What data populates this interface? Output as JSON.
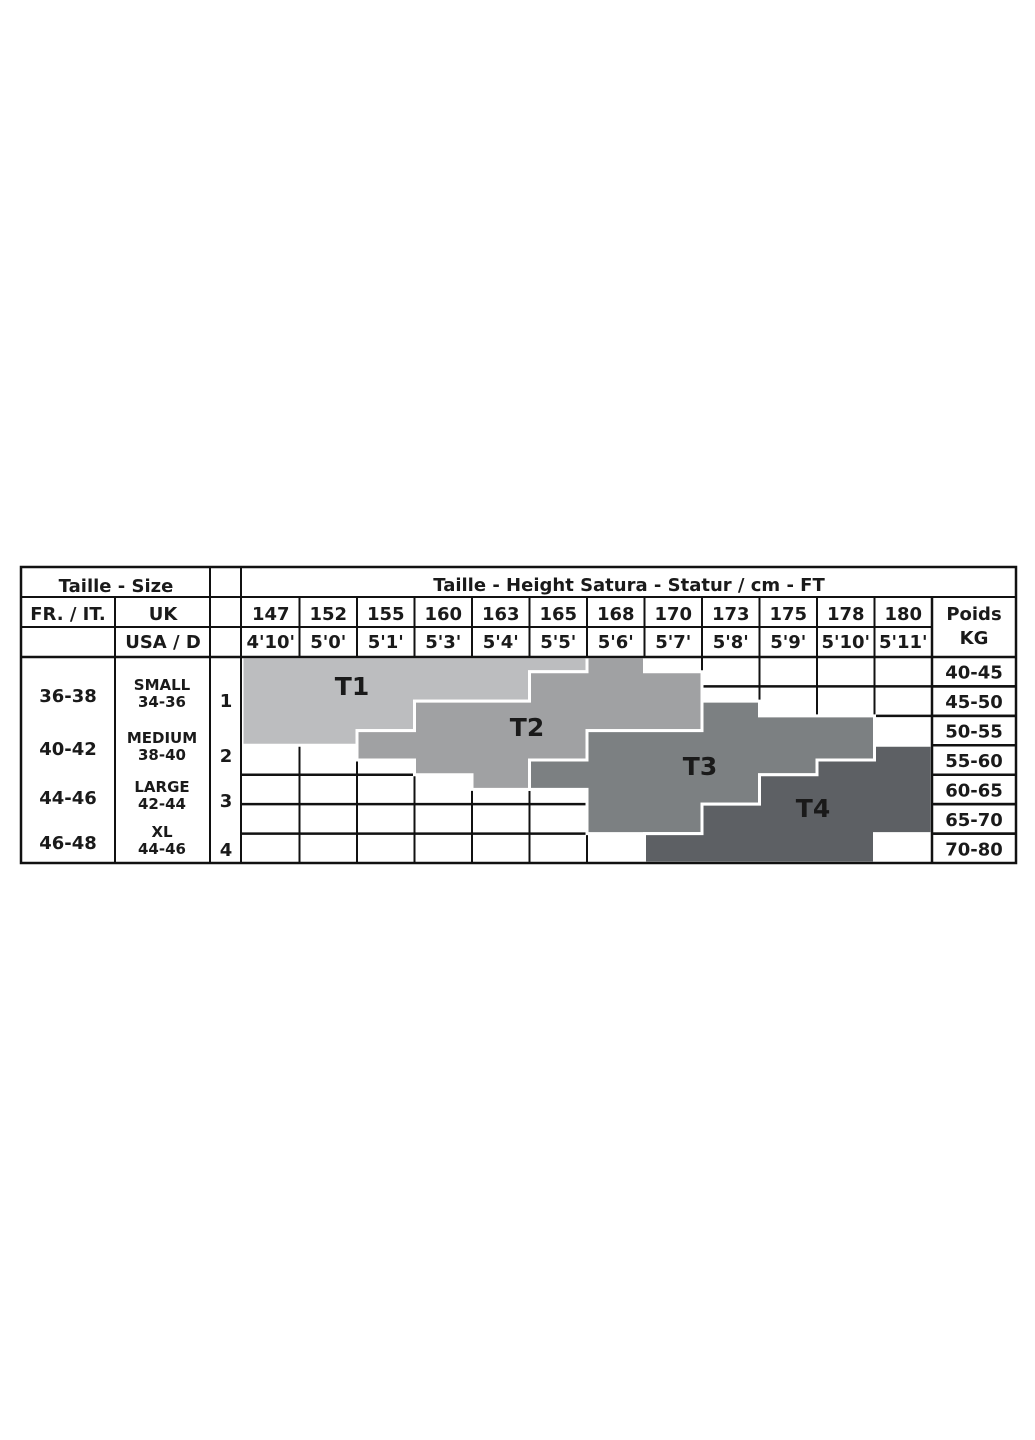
{
  "chart_data": {
    "type": "table",
    "header": {
      "size_title": "Taille - Size",
      "height_title": "Taille - Height Satura - Statur / cm - FT",
      "fr_it": "FR. / IT.",
      "uk": "UK",
      "usa_d": "USA / D",
      "weight_title": "Poids",
      "weight_unit": "KG"
    },
    "heights_cm": [
      "147",
      "152",
      "155",
      "160",
      "163",
      "165",
      "168",
      "170",
      "173",
      "175",
      "178",
      "180"
    ],
    "heights_ft": [
      "4'10'",
      "5'0'",
      "5'1'",
      "5'3'",
      "5'4'",
      "5'5'",
      "5'6'",
      "5'7'",
      "5'8'",
      "5'9'",
      "5'10'",
      "5'11'"
    ],
    "weights_kg": [
      "40-45",
      "45-50",
      "50-55",
      "55-60",
      "60-65",
      "65-70",
      "70-80"
    ],
    "sizes": [
      {
        "fr_it": "36-38",
        "uk_name": "SMALL",
        "uk_usa_d": "34-36",
        "number": "1"
      },
      {
        "fr_it": "40-42",
        "uk_name": "MEDIUM",
        "uk_usa_d": "38-40",
        "number": "2"
      },
      {
        "fr_it": "44-46",
        "uk_name": "LARGE",
        "uk_usa_d": "42-44",
        "number": "3"
      },
      {
        "fr_it": "46-48",
        "uk_name": "XL",
        "uk_usa_d": "44-46",
        "number": "4"
      }
    ],
    "zones": [
      {
        "label": "T1",
        "color": "#bcbdbf"
      },
      {
        "label": "T2",
        "color": "#a0a1a3"
      },
      {
        "label": "T3",
        "color": "#7c8082"
      },
      {
        "label": "T4",
        "color": "#5d6064"
      }
    ]
  }
}
